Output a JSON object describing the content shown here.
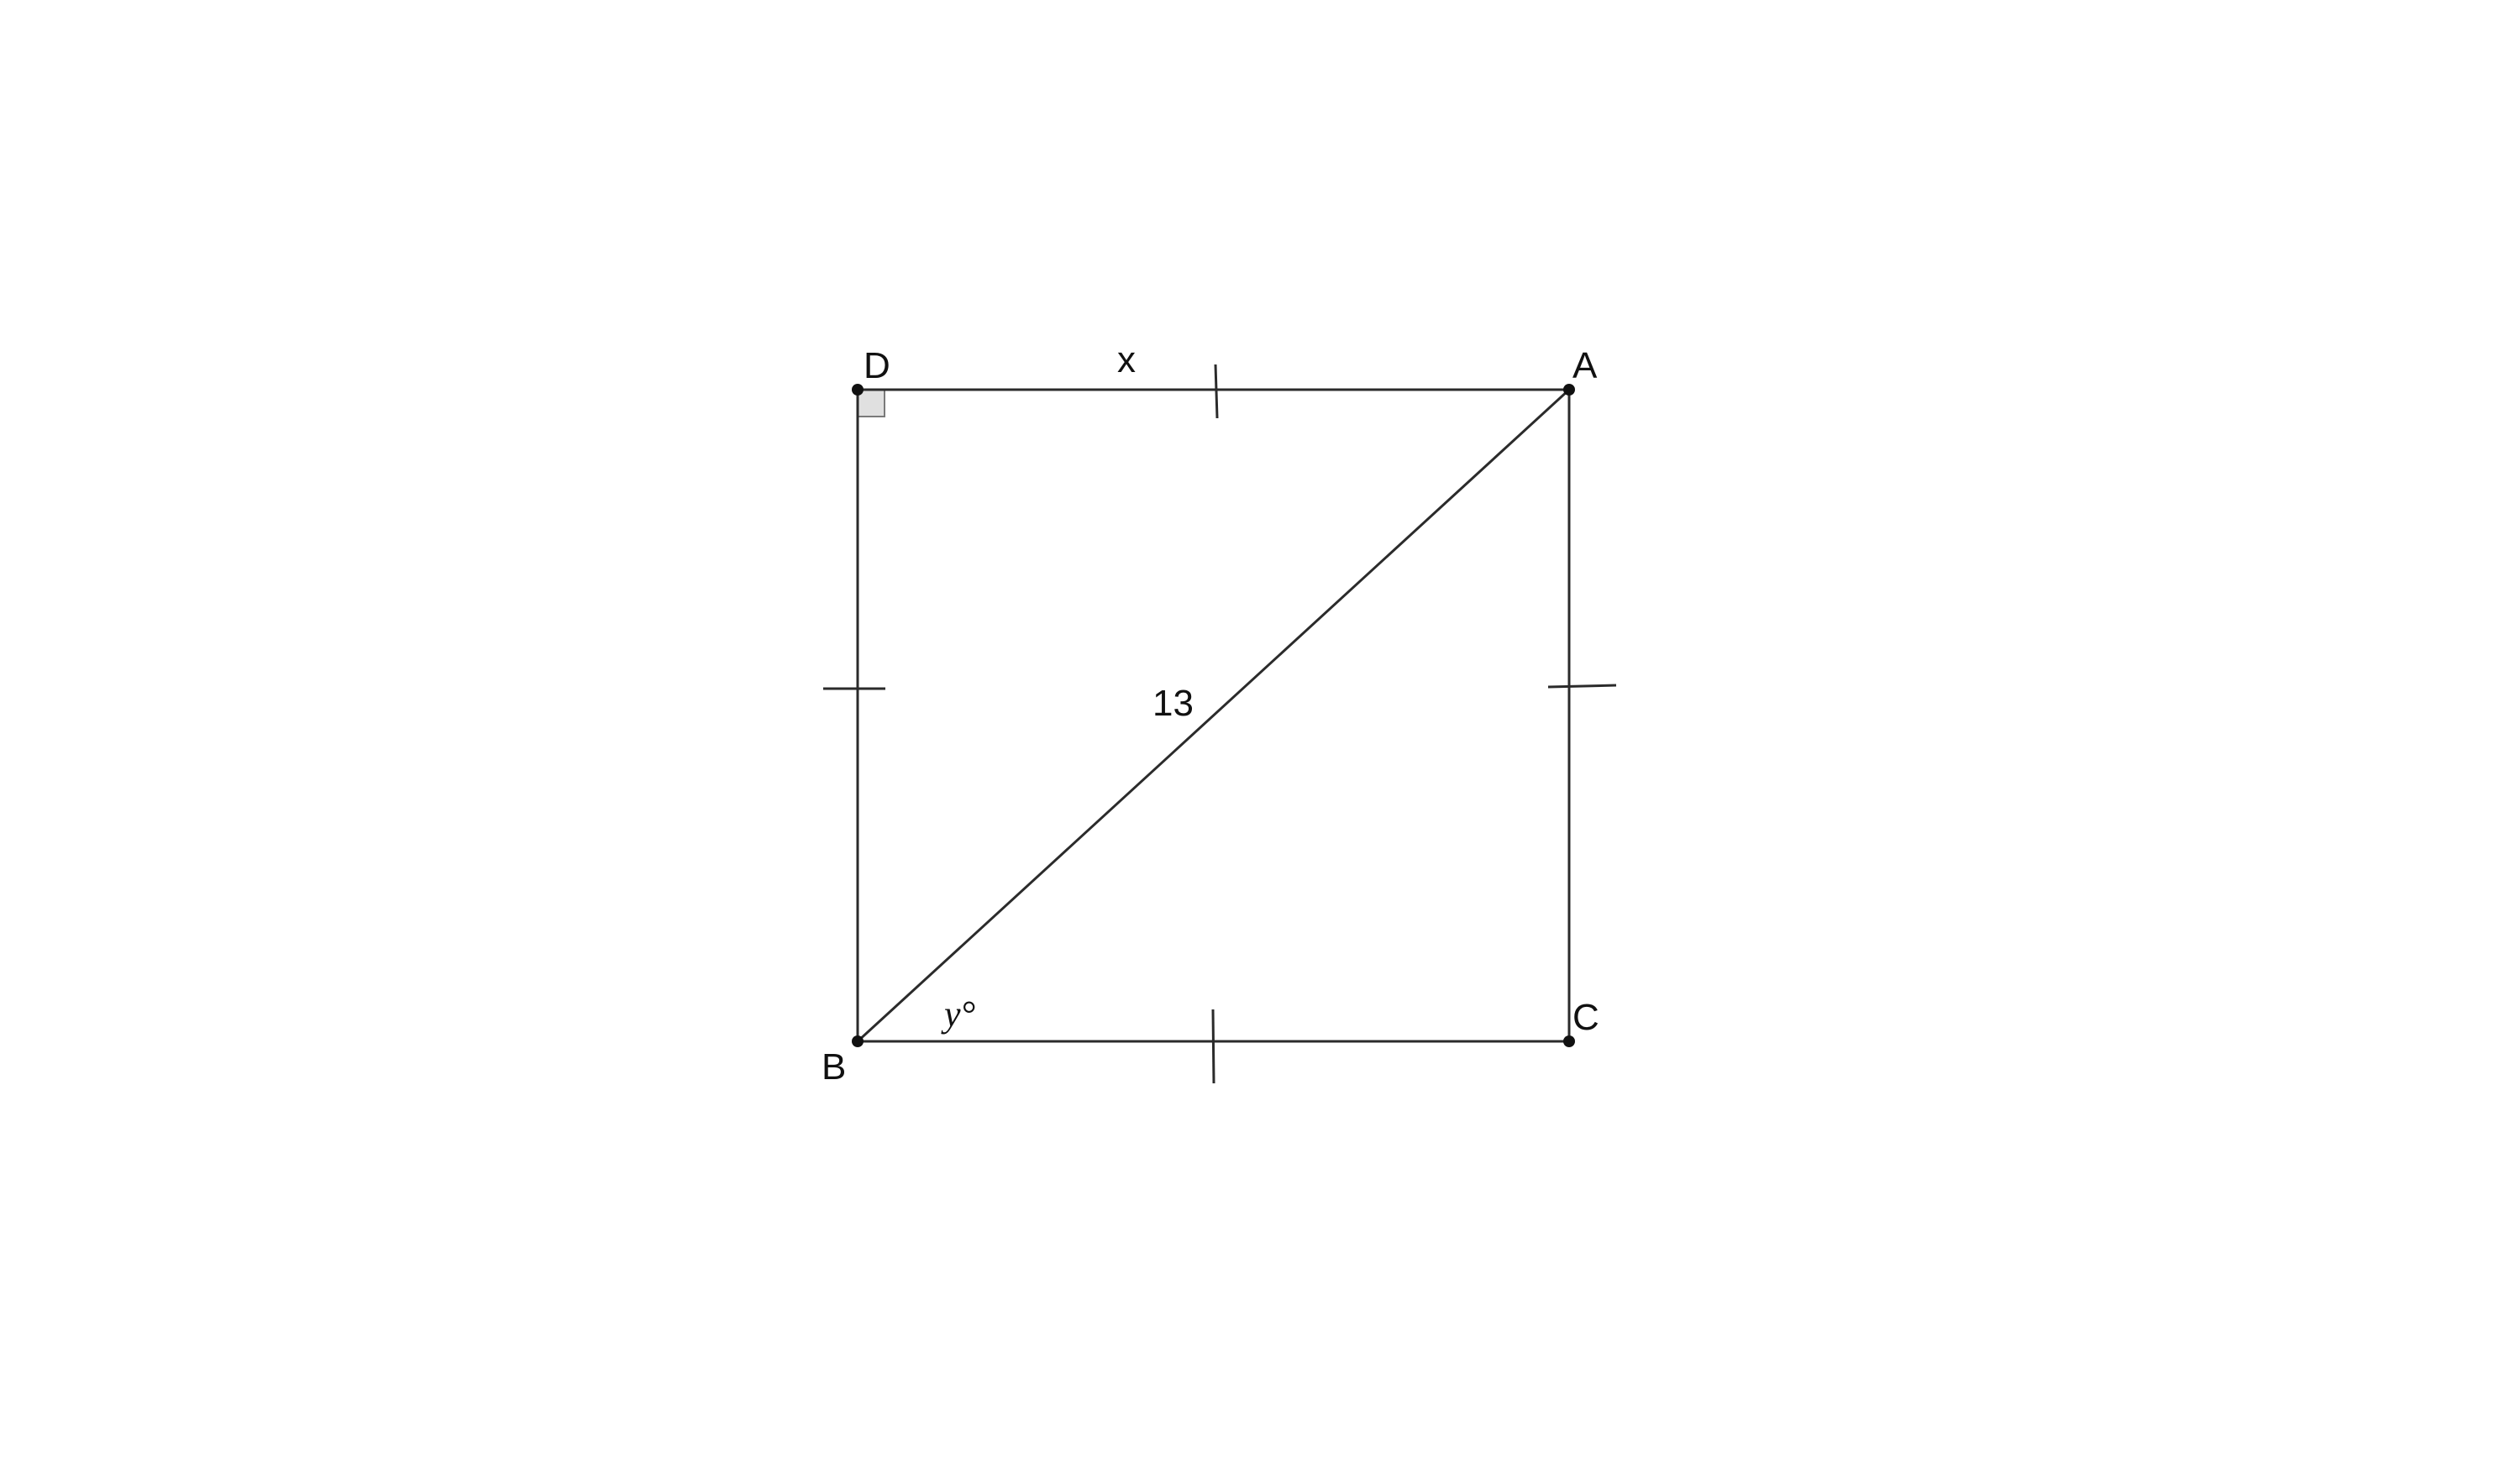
{
  "diagram": {
    "vertices": {
      "A": "A",
      "B": "B",
      "C": "C",
      "D": "D"
    },
    "labels": {
      "top_side": "x",
      "diagonal": "13",
      "angle_b": "y°"
    },
    "marks": {
      "right_angle_at": "D",
      "congruent_sides": [
        "DA",
        "DB",
        "AC",
        "BC"
      ]
    },
    "colors": {
      "stroke": "#2b2b2b",
      "right_angle_fill": "#e0e0e0"
    }
  }
}
